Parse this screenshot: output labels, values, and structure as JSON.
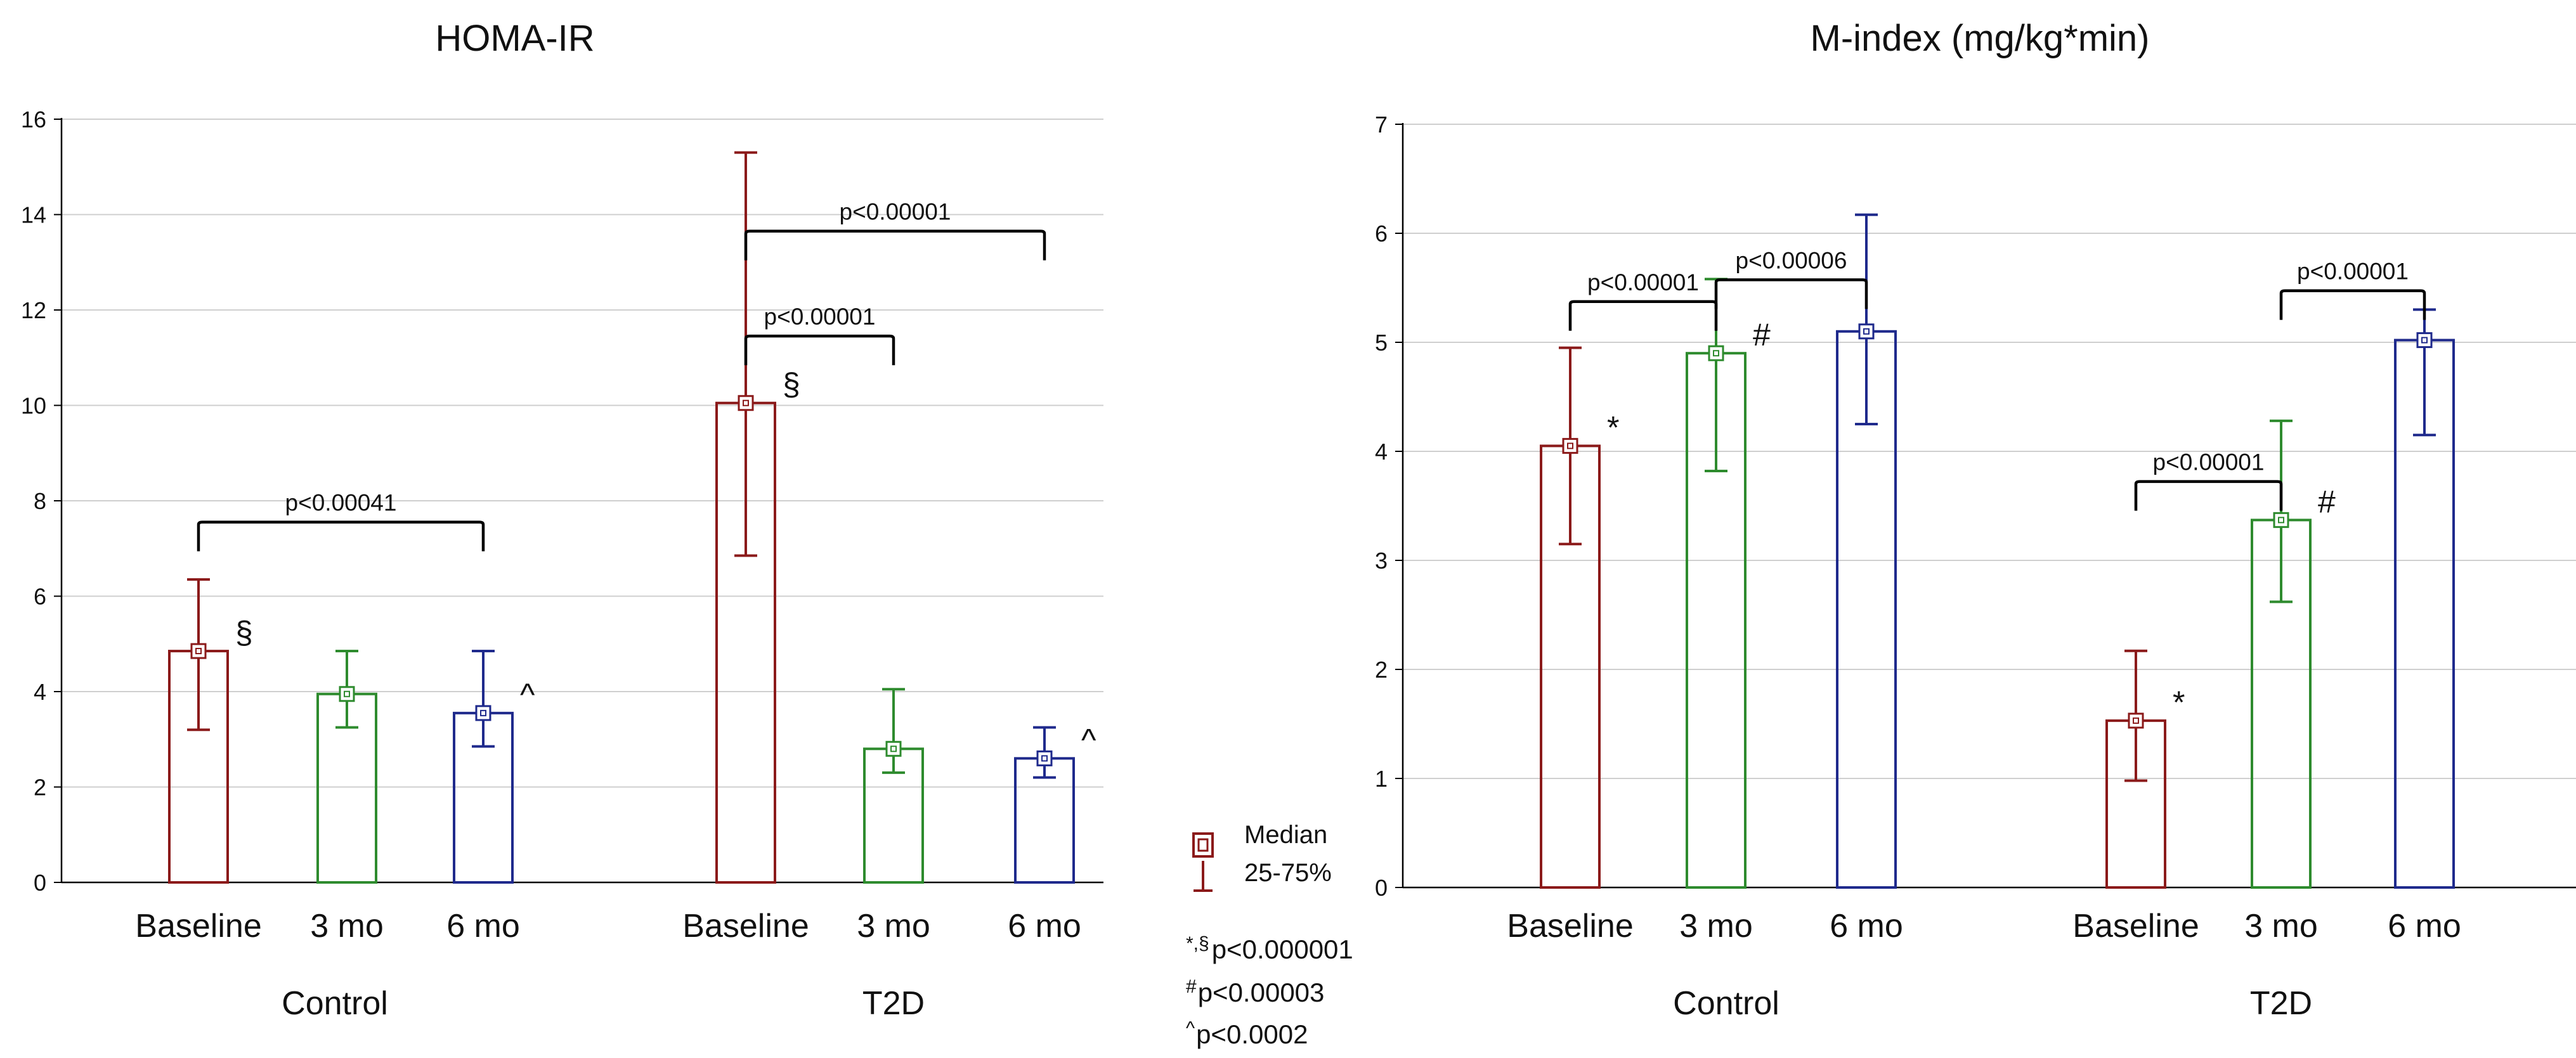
{
  "chart_data": [
    {
      "type": "bar",
      "title": "HOMA-IR",
      "xlabel": "",
      "ylabel": "",
      "ylim": [
        0,
        16
      ],
      "yticks": [
        0,
        2,
        4,
        6,
        8,
        10,
        12,
        14,
        16
      ],
      "grid": true,
      "groups": [
        {
          "name": "Control",
          "bars": [
            {
              "label": "Baseline",
              "color": "#8B1A1A",
              "median": 4.85,
              "q25": 3.2,
              "q75": 6.35,
              "marker": "§"
            },
            {
              "label": "3 mo",
              "color": "#2E8B2E",
              "median": 3.95,
              "q25": 3.25,
              "q75": 4.85,
              "marker": ""
            },
            {
              "label": "6 mo",
              "color": "#1F2A8C",
              "median": 3.55,
              "q25": 2.85,
              "q75": 4.85,
              "marker": "^"
            }
          ]
        },
        {
          "name": "T2D",
          "bars": [
            {
              "label": "Baseline",
              "color": "#8B1A1A",
              "median": 10.05,
              "q25": 6.85,
              "q75": 15.3,
              "marker": "§"
            },
            {
              "label": "3 mo",
              "color": "#2E8B2E",
              "median": 2.8,
              "q25": 2.3,
              "q75": 4.05,
              "marker": ""
            },
            {
              "label": "6 mo",
              "color": "#1F2A8C",
              "median": 2.6,
              "q25": 2.2,
              "q75": 3.25,
              "marker": "^"
            }
          ]
        }
      ],
      "brackets": [
        {
          "group": 0,
          "from": 0,
          "to": 2,
          "y": 7.5,
          "label": "p<0.00041"
        },
        {
          "group": 1,
          "from": 0,
          "to": 1,
          "y": 11.4,
          "label": "p<0.00001"
        },
        {
          "group": 1,
          "from": 0,
          "to": 2,
          "y": 13.6,
          "label": "p<0.00001"
        }
      ]
    },
    {
      "type": "bar",
      "title": "M-index (mg/kg*min)",
      "xlabel": "",
      "ylabel": "",
      "ylim": [
        0,
        7
      ],
      "yticks": [
        0,
        1,
        2,
        3,
        4,
        5,
        6,
        7
      ],
      "grid": true,
      "groups": [
        {
          "name": "Control",
          "bars": [
            {
              "label": "Baseline",
              "color": "#8B1A1A",
              "median": 4.05,
              "q25": 3.15,
              "q75": 4.95,
              "marker": "*"
            },
            {
              "label": "3 mo",
              "color": "#2E8B2E",
              "median": 4.9,
              "q25": 3.82,
              "q75": 5.58,
              "marker": "#"
            },
            {
              "label": "6 mo",
              "color": "#1F2A8C",
              "median": 5.1,
              "q25": 4.25,
              "q75": 6.17,
              "marker": ""
            }
          ]
        },
        {
          "name": "T2D",
          "bars": [
            {
              "label": "Baseline",
              "color": "#8B1A1A",
              "median": 1.53,
              "q25": 0.98,
              "q75": 2.17,
              "marker": "*"
            },
            {
              "label": "3 mo",
              "color": "#2E8B2E",
              "median": 3.37,
              "q25": 2.62,
              "q75": 4.28,
              "marker": "#"
            },
            {
              "label": "6 mo",
              "color": "#1F2A8C",
              "median": 5.02,
              "q25": 4.15,
              "q75": 5.3,
              "marker": ""
            }
          ]
        }
      ],
      "brackets": [
        {
          "group": 0,
          "from": 0,
          "to": 1,
          "y": 5.35,
          "label": "p<0.00001"
        },
        {
          "group": 0,
          "from": 1,
          "to": 2,
          "y": 5.55,
          "label": "p<0.00006"
        },
        {
          "group": 1,
          "from": 0,
          "to": 1,
          "y": 3.7,
          "label": "p<0.00001"
        },
        {
          "group": 1,
          "from": 1,
          "to": 2,
          "y": 5.45,
          "label": "p<0.00001"
        }
      ]
    }
  ],
  "legend": {
    "median_label": "Median",
    "range_label": "25-75%"
  },
  "notes": [
    {
      "sup": "*,§",
      "text": "p<0.000001"
    },
    {
      "sup": "#",
      "text": "p<0.00003"
    },
    {
      "sup": "^",
      "text": "p<0.0002"
    }
  ]
}
